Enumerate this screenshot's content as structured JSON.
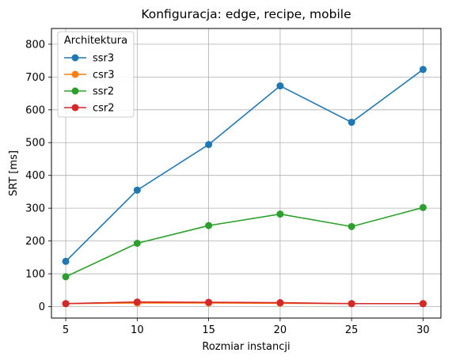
{
  "chart_data": {
    "type": "line",
    "title": "Konfiguracja: edge, recipe, mobile",
    "xlabel": "Rozmiar instancji",
    "ylabel": "SRT [ms]",
    "x": [
      5,
      10,
      15,
      20,
      25,
      30
    ],
    "xticks": [
      5,
      10,
      15,
      20,
      25,
      30
    ],
    "xlim": [
      4.0,
      31.25
    ],
    "yticks": [
      0,
      100,
      200,
      300,
      400,
      500,
      600,
      700,
      800
    ],
    "ylim": [
      -35,
      848
    ],
    "grid": true,
    "legend": {
      "title": "Architektura",
      "placement": "top-left"
    },
    "series": [
      {
        "name": "ssr3",
        "color": "#1f77b4",
        "values": [
          138,
          355,
          494,
          673,
          562,
          723
        ]
      },
      {
        "name": "csr3",
        "color": "#ff7f0e",
        "values": [
          9,
          11,
          11,
          10,
          9,
          9
        ]
      },
      {
        "name": "ssr2",
        "color": "#2ca02c",
        "values": [
          91,
          193,
          247,
          282,
          244,
          302
        ]
      },
      {
        "name": "csr2",
        "color": "#d62728",
        "values": [
          9,
          14,
          13,
          12,
          9,
          9
        ]
      }
    ]
  }
}
